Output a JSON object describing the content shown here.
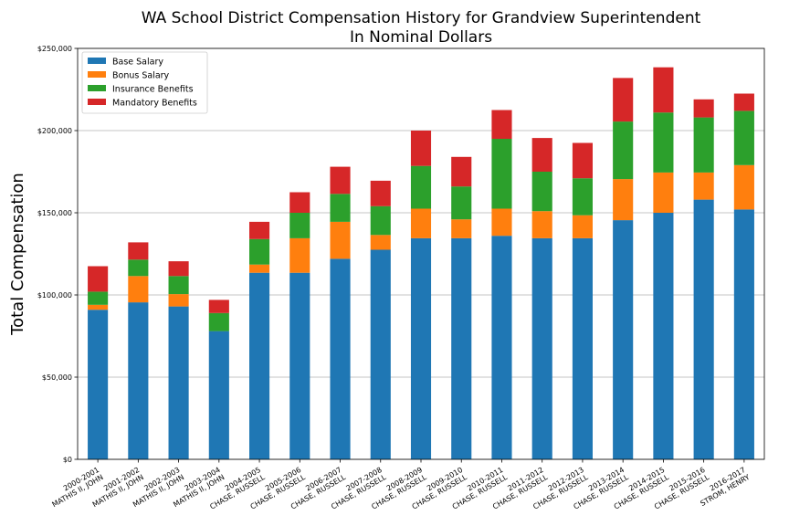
{
  "chart_data": {
    "type": "bar",
    "stacked": true,
    "title": "WA School District Compensation History for Grandview Superintendent",
    "subtitle": "In Nominal Dollars",
    "xlabel": "",
    "ylabel": "Total Compensation",
    "ylim": [
      0,
      250000
    ],
    "yticks": [
      0,
      50000,
      100000,
      150000,
      200000,
      250000
    ],
    "ytick_labels": [
      "$0",
      "$50,000",
      "$100,000",
      "$150,000",
      "$200,000",
      "$250,000"
    ],
    "grid": "horizontal",
    "legend_position": "top-left",
    "categories": [
      [
        "2000-2001",
        "MATHIS II, JOHN"
      ],
      [
        "2001-2002",
        "MATHIS II, JOHN"
      ],
      [
        "2002-2003",
        "MATHIS II, JOHN"
      ],
      [
        "2003-2004",
        "MATHIS II, JOHN"
      ],
      [
        "2004-2005",
        "CHASE, RUSSELL"
      ],
      [
        "2005-2006",
        "CHASE, RUSSELL"
      ],
      [
        "2006-2007",
        "CHASE, RUSSELL"
      ],
      [
        "2007-2008",
        "CHASE, RUSSELL"
      ],
      [
        "2008-2009",
        "CHASE, RUSSELL"
      ],
      [
        "2009-2010",
        "CHASE, RUSSELL"
      ],
      [
        "2010-2011",
        "CHASE, RUSSELL"
      ],
      [
        "2011-2012",
        "CHASE, RUSSELL"
      ],
      [
        "2012-2013",
        "CHASE, RUSSELL"
      ],
      [
        "2013-2014",
        "CHASE, RUSSELL"
      ],
      [
        "2014-2015",
        "CHASE, RUSSELL"
      ],
      [
        "2015-2016",
        "CHASE, RUSSELL"
      ],
      [
        "2016-2017",
        "STROM, HENRY"
      ]
    ],
    "series": [
      {
        "name": "Base Salary",
        "color": "#1f77b4",
        "values": [
          91000,
          95500,
          93000,
          78000,
          113500,
          113500,
          122000,
          127500,
          134500,
          134500,
          136000,
          134500,
          134500,
          145500,
          150000,
          158000,
          152000
        ]
      },
      {
        "name": "Bonus Salary",
        "color": "#ff7f0e",
        "values": [
          3000,
          16000,
          7500,
          0,
          5000,
          21000,
          22500,
          9000,
          18000,
          11500,
          16500,
          16500,
          14000,
          25000,
          24500,
          16500,
          27000
        ]
      },
      {
        "name": "Insurance Benefits",
        "color": "#2ca02c",
        "values": [
          8000,
          10000,
          11000,
          11000,
          15500,
          15500,
          17000,
          17500,
          26000,
          20000,
          42500,
          24000,
          22500,
          35000,
          36500,
          33500,
          33000
        ]
      },
      {
        "name": "Mandatory Benefits",
        "color": "#d62728",
        "values": [
          15500,
          10500,
          9000,
          8000,
          10500,
          12500,
          16500,
          15500,
          21500,
          18000,
          17500,
          20500,
          21500,
          26500,
          27500,
          11000,
          10500
        ]
      }
    ]
  }
}
